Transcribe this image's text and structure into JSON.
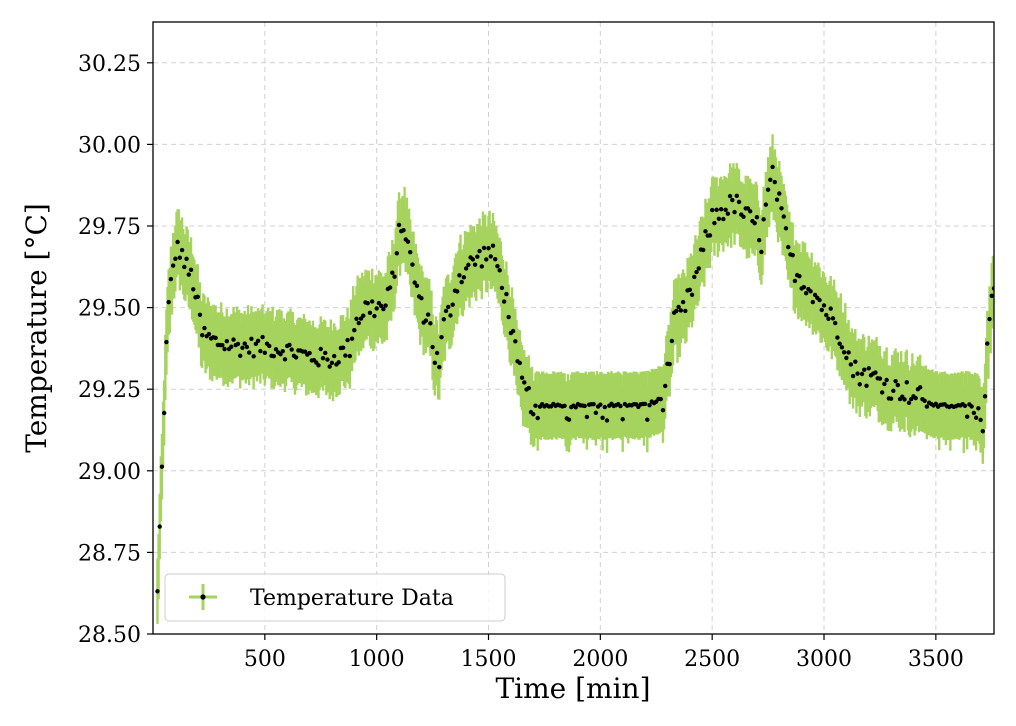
{
  "chart_data": {
    "type": "scatter",
    "title": "",
    "xlabel": "Time [min]",
    "ylabel": "Temperature [°C]",
    "xlim": [
      0,
      3760
    ],
    "ylim": [
      28.5,
      30.375
    ],
    "x_ticks": [
      500,
      1000,
      1500,
      2000,
      2500,
      3000,
      3500
    ],
    "x_tick_labels": [
      "500",
      "1000",
      "1500",
      "2000",
      "2500",
      "3000",
      "3500"
    ],
    "y_ticks": [
      28.5,
      28.75,
      29.0,
      29.25,
      29.5,
      29.75,
      30.0,
      30.25
    ],
    "y_tick_labels": [
      "28.50",
      "28.75",
      "29.00",
      "29.25",
      "29.50",
      "29.75",
      "30.00",
      "30.25"
    ],
    "grid": true,
    "legend": {
      "position": "lower-left",
      "entries": [
        "Temperature Data"
      ]
    },
    "colors": {
      "errorbar": "#a6d35e",
      "marker": "#000000",
      "grid": "#d0d0d0"
    },
    "error_half_width": 0.1,
    "series": [
      {
        "name": "Temperature Data",
        "knots": [
          [
            20,
            28.62
          ],
          [
            30,
            28.82
          ],
          [
            40,
            29.0
          ],
          [
            50,
            29.2
          ],
          [
            60,
            29.38
          ],
          [
            70,
            29.5
          ],
          [
            85,
            29.6
          ],
          [
            100,
            29.67
          ],
          [
            120,
            29.68
          ],
          [
            150,
            29.62
          ],
          [
            180,
            29.58
          ],
          [
            220,
            29.42
          ],
          [
            260,
            29.4
          ],
          [
            300,
            29.39
          ],
          [
            400,
            29.38
          ],
          [
            500,
            29.38
          ],
          [
            600,
            29.37
          ],
          [
            700,
            29.35
          ],
          [
            800,
            29.34
          ],
          [
            880,
            29.38
          ],
          [
            900,
            29.45
          ],
          [
            950,
            29.5
          ],
          [
            1000,
            29.5
          ],
          [
            1040,
            29.5
          ],
          [
            1070,
            29.58
          ],
          [
            1100,
            29.72
          ],
          [
            1120,
            29.76
          ],
          [
            1150,
            29.65
          ],
          [
            1200,
            29.5
          ],
          [
            1240,
            29.45
          ],
          [
            1260,
            29.35
          ],
          [
            1280,
            29.33
          ],
          [
            1300,
            29.45
          ],
          [
            1330,
            29.5
          ],
          [
            1360,
            29.58
          ],
          [
            1400,
            29.62
          ],
          [
            1450,
            29.65
          ],
          [
            1500,
            29.67
          ],
          [
            1530,
            29.65
          ],
          [
            1570,
            29.55
          ],
          [
            1600,
            29.45
          ],
          [
            1630,
            29.32
          ],
          [
            1660,
            29.25
          ],
          [
            1700,
            29.2
          ],
          [
            1800,
            29.2
          ],
          [
            1900,
            29.2
          ],
          [
            2000,
            29.2
          ],
          [
            2100,
            29.2
          ],
          [
            2200,
            29.2
          ],
          [
            2280,
            29.22
          ],
          [
            2300,
            29.3
          ],
          [
            2330,
            29.45
          ],
          [
            2380,
            29.5
          ],
          [
            2430,
            29.6
          ],
          [
            2470,
            29.7
          ],
          [
            2500,
            29.77
          ],
          [
            2550,
            29.8
          ],
          [
            2600,
            29.82
          ],
          [
            2650,
            29.78
          ],
          [
            2700,
            29.75
          ],
          [
            2720,
            29.7
          ],
          [
            2750,
            29.85
          ],
          [
            2770,
            29.9
          ],
          [
            2790,
            29.85
          ],
          [
            2820,
            29.75
          ],
          [
            2850,
            29.65
          ],
          [
            2880,
            29.6
          ],
          [
            2950,
            29.55
          ],
          [
            3000,
            29.5
          ],
          [
            3050,
            29.45
          ],
          [
            3100,
            29.38
          ],
          [
            3120,
            29.32
          ],
          [
            3150,
            29.3
          ],
          [
            3250,
            29.28
          ],
          [
            3300,
            29.25
          ],
          [
            3350,
            29.25
          ],
          [
            3400,
            29.23
          ],
          [
            3450,
            29.22
          ],
          [
            3500,
            29.2
          ],
          [
            3600,
            29.2
          ],
          [
            3690,
            29.2
          ],
          [
            3710,
            29.1
          ],
          [
            3720,
            29.25
          ],
          [
            3730,
            29.38
          ],
          [
            3745,
            29.48
          ],
          [
            3760,
            29.55
          ]
        ]
      }
    ]
  }
}
